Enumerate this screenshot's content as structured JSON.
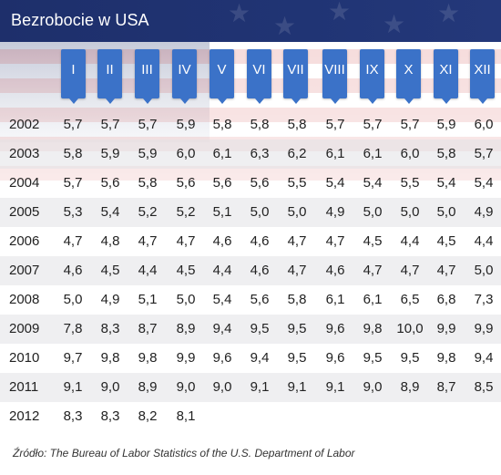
{
  "title": "Bezrobocie w USA",
  "months": [
    "I",
    "II",
    "III",
    "IV",
    "V",
    "VI",
    "VII",
    "VIII",
    "IX",
    "X",
    "XI",
    "XII"
  ],
  "rows": [
    {
      "year": "2002",
      "values": [
        "5,7",
        "5,7",
        "5,7",
        "5,9",
        "5,8",
        "5,8",
        "5,8",
        "5,7",
        "5,7",
        "5,7",
        "5,9",
        "6,0"
      ]
    },
    {
      "year": "2003",
      "values": [
        "5,8",
        "5,9",
        "5,9",
        "6,0",
        "6,1",
        "6,3",
        "6,2",
        "6,1",
        "6,1",
        "6,0",
        "5,8",
        "5,7"
      ]
    },
    {
      "year": "2004",
      "values": [
        "5,7",
        "5,6",
        "5,8",
        "5,6",
        "5,6",
        "5,6",
        "5,5",
        "5,4",
        "5,4",
        "5,5",
        "5,4",
        "5,4"
      ]
    },
    {
      "year": "2005",
      "values": [
        "5,3",
        "5,4",
        "5,2",
        "5,2",
        "5,1",
        "5,0",
        "5,0",
        "4,9",
        "5,0",
        "5,0",
        "5,0",
        "4,9"
      ]
    },
    {
      "year": "2006",
      "values": [
        "4,7",
        "4,8",
        "4,7",
        "4,7",
        "4,6",
        "4,6",
        "4,7",
        "4,7",
        "4,5",
        "4,4",
        "4,5",
        "4,4"
      ]
    },
    {
      "year": "2007",
      "values": [
        "4,6",
        "4,5",
        "4,4",
        "4,5",
        "4,4",
        "4,6",
        "4,7",
        "4,6",
        "4,7",
        "4,7",
        "4,7",
        "5,0"
      ]
    },
    {
      "year": "2008",
      "values": [
        "5,0",
        "4,9",
        "5,1",
        "5,0",
        "5,4",
        "5,6",
        "5,8",
        "6,1",
        "6,1",
        "6,5",
        "6,8",
        "7,3"
      ]
    },
    {
      "year": "2009",
      "values": [
        "7,8",
        "8,3",
        "8,7",
        "8,9",
        "9,4",
        "9,5",
        "9,5",
        "9,6",
        "9,8",
        "10,0",
        "9,9",
        "9,9"
      ]
    },
    {
      "year": "2010",
      "values": [
        "9,7",
        "9,8",
        "9,8",
        "9,9",
        "9,6",
        "9,4",
        "9,5",
        "9,6",
        "9,5",
        "9,5",
        "9,8",
        "9,4"
      ]
    },
    {
      "year": "2011",
      "values": [
        "9,1",
        "9,0",
        "8,9",
        "9,0",
        "9,0",
        "9,1",
        "9,1",
        "9,1",
        "9,0",
        "8,9",
        "8,7",
        "8,5"
      ]
    },
    {
      "year": "2012",
      "values": [
        "8,3",
        "8,3",
        "8,2",
        "8,1",
        "",
        "",
        "",
        "",
        "",
        "",
        "",
        ""
      ]
    }
  ],
  "source": "Źródło: The Bureau of Labor Statistics of the U.S. Department of Labor",
  "colors": {
    "header": "#1e2f6b",
    "month_tag": "#3b72c8",
    "row_shade": "#e1e1e6"
  }
}
